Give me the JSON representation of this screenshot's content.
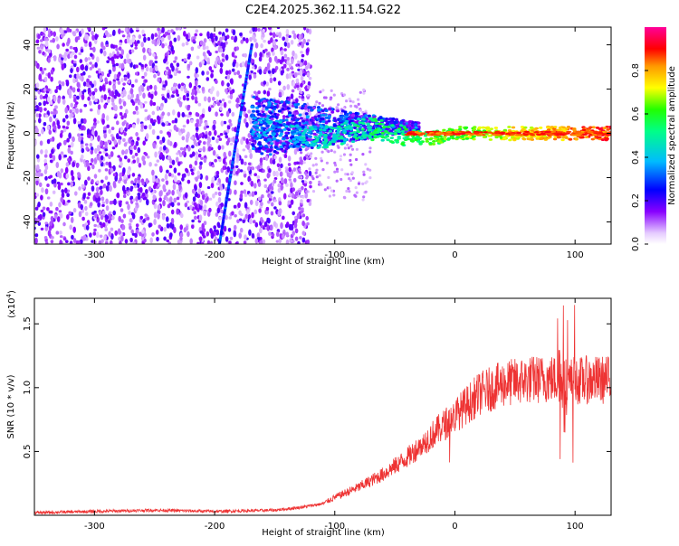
{
  "title": "C2E4.2025.362.11.54.G22",
  "colors": {
    "snr_line": "#ee3333",
    "frame": "#000000"
  },
  "chart_data": [
    {
      "id": "spectrogram",
      "type": "heatmap",
      "xlabel": "Height of straight line (km)",
      "ylabel": "Frequency (Hz)",
      "xlim": [
        -350,
        130
      ],
      "ylim": [
        -50,
        48
      ],
      "xticks": [
        -300,
        -200,
        -100,
        0,
        100
      ],
      "xtick_labels": [
        "-300",
        "-200",
        "-100",
        "0",
        "100"
      ],
      "yticks": [
        -40,
        -20,
        0,
        20,
        40
      ],
      "ytick_labels": [
        "-40",
        "-20",
        "0",
        "20",
        "40"
      ],
      "features": {
        "noise_region_x": [
          -350,
          -120
        ],
        "ridge_line": {
          "x": [
            -196,
            -169
          ],
          "y": [
            -50,
            40
          ]
        },
        "carrier_track_x": [
          -170,
          130
        ],
        "carrier_freq": 0
      },
      "colorbar": {
        "label": "Normalized spectral amplitude",
        "range": [
          0,
          1
        ],
        "ticks": [
          0.0,
          0.2,
          0.4,
          0.6,
          0.8
        ],
        "tick_labels": [
          "0.0",
          "0.2",
          "0.4",
          "0.6",
          "0.8"
        ]
      }
    },
    {
      "id": "snr",
      "type": "line",
      "xlabel": "Height of straight line (km)",
      "ylabel": "SNR (10 * v/v)",
      "scale_label": "(x10",
      "scale_exp": "4",
      "scale_close": ")",
      "xlim": [
        -350,
        130
      ],
      "ylim": [
        0,
        1.7
      ],
      "xticks": [
        -300,
        -200,
        -100,
        0,
        100
      ],
      "xtick_labels": [
        "-300",
        "-200",
        "-100",
        "0",
        "100"
      ],
      "yticks": [
        0.5,
        1.0,
        1.5
      ],
      "ytick_labels": [
        "0.5",
        "1.0",
        "1.5"
      ],
      "profile": {
        "x": [
          -350,
          -300,
          -250,
          -200,
          -150,
          -130,
          -110,
          -100,
          -80,
          -60,
          -40,
          -20,
          0,
          20,
          40,
          60,
          80,
          95,
          110,
          130
        ],
        "y": [
          0.02,
          0.03,
          0.04,
          0.03,
          0.04,
          0.06,
          0.09,
          0.14,
          0.22,
          0.32,
          0.45,
          0.62,
          0.78,
          0.95,
          1.03,
          1.06,
          1.07,
          1.05,
          1.06,
          1.06
        ]
      }
    }
  ]
}
